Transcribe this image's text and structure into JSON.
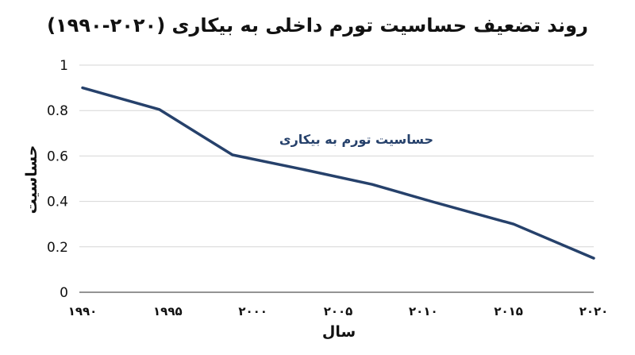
{
  "chart_data": {
    "type": "line",
    "title": "روند تضعیف حساسیت تورم داخلی به بیکاری (۲۰۲۰-۱۹۹۰)",
    "xlabel": "سال",
    "ylabel": "حساسیت",
    "x_tick_labels": [
      "۱۹۹۰",
      "۱۹۹۵",
      "۲۰۰۰",
      "۲۰۰۵",
      "۲۰۱۰",
      "۲۰۱۵",
      "۲۰۲۰"
    ],
    "x_ticks": [
      1990,
      1995,
      2000,
      2005,
      2010,
      2015,
      2020
    ],
    "y_tick_labels": [
      "0",
      "0.2",
      "0.4",
      "0.6",
      "0.8",
      "1"
    ],
    "y_ticks": [
      0,
      0.2,
      0.4,
      0.6,
      0.8,
      1
    ],
    "xlim": [
      1990,
      2020
    ],
    "ylim": [
      0,
      1
    ],
    "grid": true,
    "series": [
      {
        "name": "حساسیت تورم به بیکاری",
        "color": "#26416b",
        "x": [
          1990,
          1994.5,
          1998.8,
          2003,
          2007,
          2010.7,
          2015.3,
          2020
        ],
        "y": [
          0.9,
          0.805,
          0.605,
          0.54,
          0.475,
          0.395,
          0.3,
          0.15
        ]
      }
    ]
  }
}
